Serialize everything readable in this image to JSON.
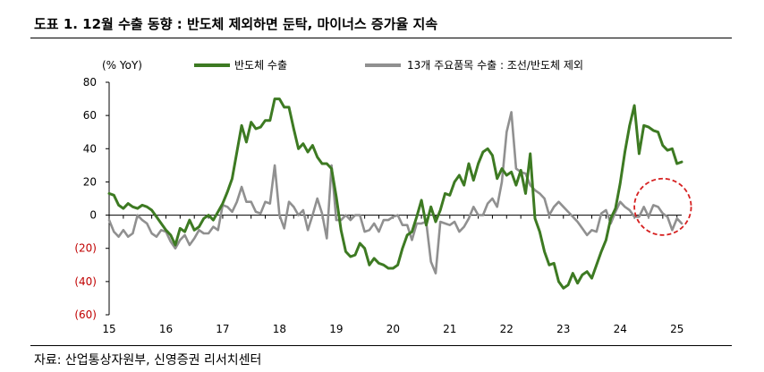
{
  "title": "도표 1. 12월 수출 동향 : 반도체 제외하면 둔탁, 마이너스 증가율 지속",
  "source": "자료: 산업통상자원부, 신영증권 리서치센터",
  "colors": {
    "green": "#3d7a22",
    "gray": "#909090",
    "negative_tick": "#c00000",
    "annotation": "#d62020"
  },
  "chart_data": {
    "type": "line",
    "title": "",
    "xlabel": "",
    "ylabel": "(% YoY)",
    "ylim": [
      -60,
      80
    ],
    "yticks": [
      80,
      60,
      40,
      20,
      0,
      -20,
      -40,
      -60
    ],
    "ytick_labels": [
      "80",
      "60",
      "40",
      "20",
      "0",
      "(20)",
      "(40)",
      "(60)"
    ],
    "xlim": [
      0,
      121
    ],
    "xticks": [
      0,
      12,
      24,
      36,
      48,
      60,
      72,
      84,
      96,
      108,
      120
    ],
    "xtick_labels": [
      "15",
      "16",
      "17",
      "18",
      "19",
      "20",
      "21",
      "22",
      "23",
      "24",
      "25"
    ],
    "grid": false,
    "legend": "top",
    "annotations": [
      {
        "type": "dashed-ellipse",
        "center": [
          117,
          5
        ],
        "rx": 6,
        "ry": 17
      }
    ],
    "series": [
      {
        "name": "반도체 수출",
        "color": "#3d7a22",
        "x_start": 0,
        "values": [
          13,
          12,
          6,
          4,
          7,
          5,
          4,
          6,
          5,
          3,
          -1,
          -5,
          -9,
          -12,
          -18,
          -8,
          -10,
          -3,
          -9,
          -7,
          -2,
          0,
          -3,
          2,
          7,
          14,
          22,
          38,
          54,
          44,
          56,
          52,
          53,
          57,
          57,
          70,
          70,
          65,
          65,
          52,
          40,
          43,
          38,
          42,
          35,
          31,
          31,
          28,
          11,
          -9,
          -22,
          -25,
          -24,
          -17,
          -20,
          -30,
          -26,
          -29,
          -30,
          -32,
          -32,
          -30,
          -20,
          -12,
          -10,
          -1,
          9,
          -6,
          5,
          -4,
          3,
          13,
          12,
          20,
          24,
          18,
          31,
          21,
          31,
          38,
          40,
          36,
          22,
          28,
          24,
          26,
          18,
          27,
          13,
          37,
          -2,
          -10,
          -22,
          -30,
          -29,
          -40,
          -44,
          -42,
          -35,
          -41,
          -36,
          -34,
          -38,
          -30,
          -22,
          -15,
          -2,
          4,
          19,
          38,
          54,
          66,
          37,
          54,
          53,
          51,
          50,
          42,
          39,
          40,
          31,
          32
        ]
      },
      {
        "name": "13개 주요품목 수출 : 조선/반도체 제외",
        "color": "#909090",
        "x_start": 0,
        "values": [
          -3,
          -10,
          -13,
          -9,
          -13,
          -11,
          0,
          -3,
          -5,
          -11,
          -13,
          -9,
          -10,
          -16,
          -20,
          -15,
          -12,
          -18,
          -14,
          -9,
          -11,
          -11,
          -7,
          -9,
          6,
          5,
          2,
          8,
          17,
          8,
          8,
          2,
          1,
          8,
          7,
          30,
          0,
          -8,
          8,
          5,
          0,
          3,
          -9,
          0,
          10,
          1,
          -14,
          30,
          -3,
          -3,
          0,
          -3,
          0,
          0,
          -10,
          -9,
          -5,
          -10,
          -3,
          -3,
          -1,
          0,
          -6,
          -6,
          -15,
          -5,
          -5,
          -4,
          -28,
          -35,
          -4,
          -5,
          -6,
          -4,
          -10,
          -7,
          -2,
          5,
          0,
          0,
          7,
          10,
          5,
          20,
          50,
          62,
          28,
          26,
          25,
          18,
          15,
          13,
          10,
          0,
          5,
          8,
          5,
          2,
          -1,
          -4,
          -8,
          -12,
          -9,
          -10,
          1,
          3,
          -5,
          2,
          8,
          5,
          3,
          -1,
          -1,
          5,
          -1,
          6,
          5,
          1,
          -1,
          -9,
          -2,
          -5
        ]
      }
    ]
  }
}
